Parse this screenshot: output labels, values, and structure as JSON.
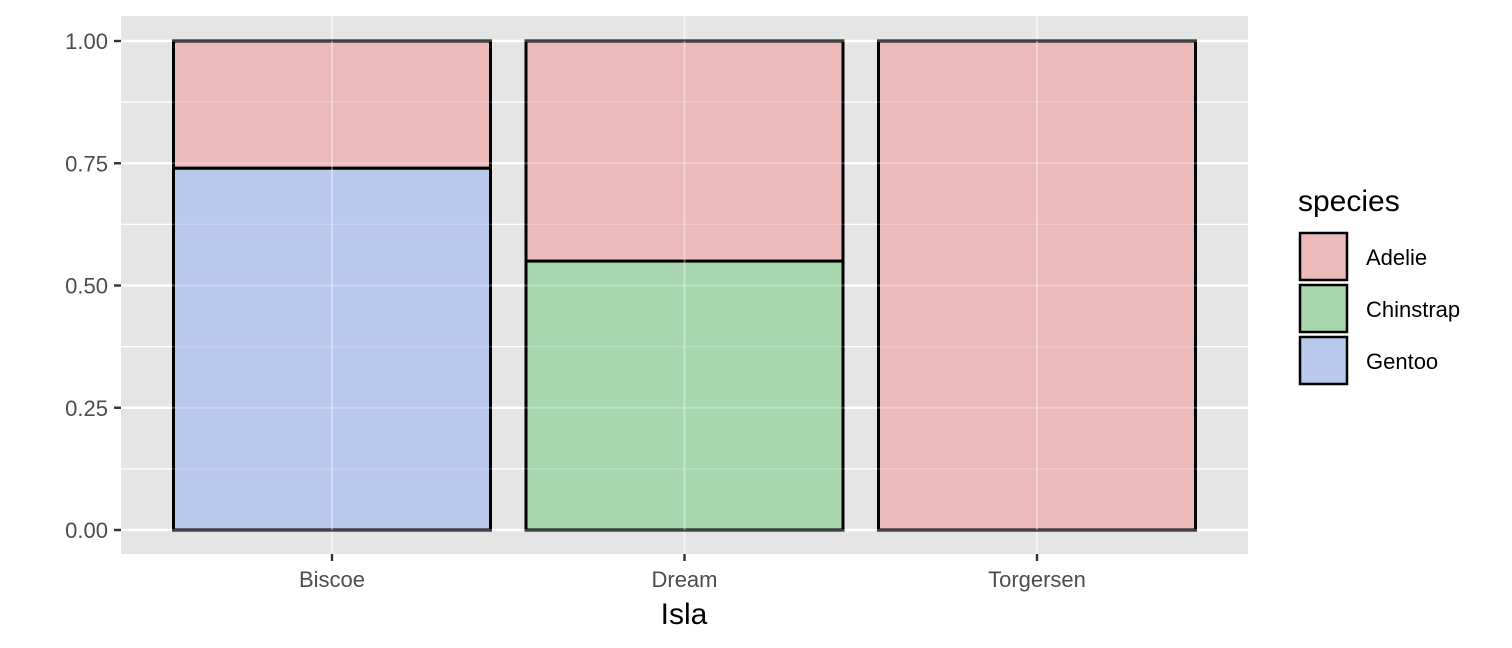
{
  "chart_data": {
    "type": "bar",
    "stacked": true,
    "normalized": true,
    "categories": [
      "Biscoe",
      "Dream",
      "Torgersen"
    ],
    "series": [
      {
        "name": "Adelie",
        "values": [
          0.26,
          0.45,
          1.0
        ],
        "color": "#ebbbbb"
      },
      {
        "name": "Chinstrap",
        "values": [
          0.0,
          0.55,
          0.0
        ],
        "color": "#a9d7ad"
      },
      {
        "name": "Gentoo",
        "values": [
          0.74,
          0.0,
          0.0
        ],
        "color": "#b9c9ec"
      }
    ],
    "stack_order_bottom_to_top": [
      "Gentoo",
      "Chinstrap",
      "Adelie"
    ],
    "xlabel": "Isla",
    "ylabel": "",
    "ylim": [
      0,
      1
    ],
    "y_ticks": [
      "0.00",
      "0.25",
      "0.50",
      "0.75",
      "1.00"
    ],
    "y_tick_values": [
      0,
      0.25,
      0.5,
      0.75,
      1.0
    ],
    "grid": true,
    "legend": {
      "title": "species",
      "position": "right"
    },
    "colors": {
      "panel_background": "#e5e5e5",
      "grid": "#ffffff",
      "bar_outline": "#000000"
    }
  }
}
